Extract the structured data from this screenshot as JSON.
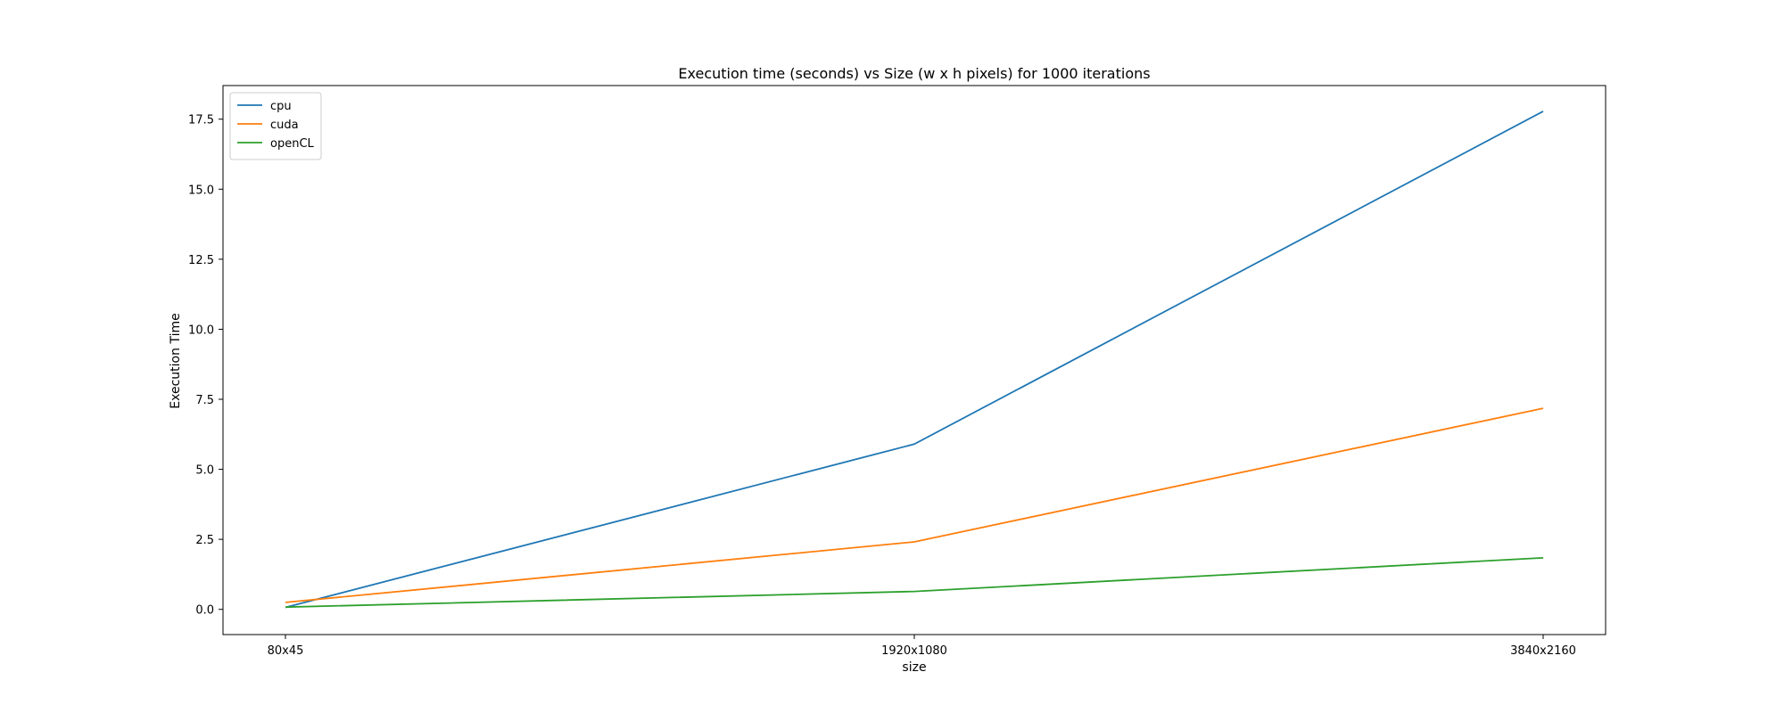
{
  "chart_data": {
    "type": "line",
    "title": "Execution time (seconds) vs Size (w x h pixels) for 1000 iterations",
    "xlabel": "size",
    "ylabel": "Execution Time",
    "categories": [
      "80x45",
      "1920x1080",
      "3840x2160"
    ],
    "y_ticks": [
      0.0,
      2.5,
      5.0,
      7.5,
      10.0,
      12.5,
      15.0,
      17.5
    ],
    "y_tick_labels": [
      "0.0",
      "2.5",
      "5.0",
      "7.5",
      "10.0",
      "12.5",
      "15.0",
      "17.5"
    ],
    "ylim": [
      -0.9,
      18.7
    ],
    "grid": false,
    "legend_position": "upper-left",
    "series": [
      {
        "name": "cpu",
        "color": "#1f77b4",
        "values": [
          0.07,
          5.9,
          17.78
        ]
      },
      {
        "name": "cuda",
        "color": "#ff7f0e",
        "values": [
          0.25,
          2.41,
          7.18
        ]
      },
      {
        "name": "openCL",
        "color": "#2ca02c",
        "values": [
          0.08,
          0.64,
          1.84
        ]
      }
    ]
  }
}
